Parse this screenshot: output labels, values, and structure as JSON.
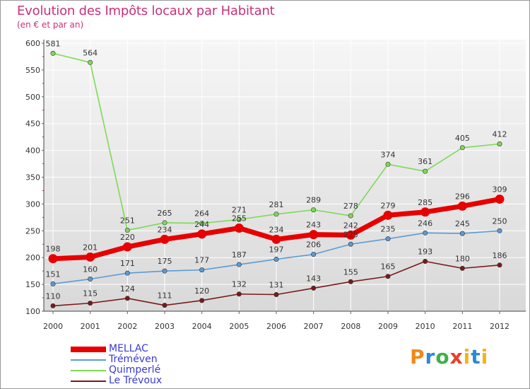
{
  "header": {
    "title": "Evolution des Impôts locaux par Habitant",
    "subtitle": "(en € et par an)"
  },
  "logo": {
    "text": "Proxiti"
  },
  "chart_data": {
    "type": "line",
    "title": "Evolution des Impôts locaux par Habitant",
    "subtitle": "(en € et par an)",
    "xlabel": "",
    "ylabel": "",
    "x": [
      "2000",
      "2001",
      "2002",
      "2003",
      "2004",
      "2005",
      "2006",
      "2007",
      "2008",
      "2009",
      "2010",
      "2011",
      "2012"
    ],
    "ylim": [
      100,
      600
    ],
    "yticks": [
      100,
      150,
      200,
      250,
      300,
      350,
      400,
      450,
      500,
      550,
      600
    ],
    "grid": true,
    "legend_position": "bottom-left",
    "series": [
      {
        "name": "MELLAC",
        "color": "#e60000",
        "emphasis": true,
        "values": [
          198,
          201,
          220,
          234,
          244,
          255,
          234,
          243,
          242,
          279,
          285,
          296,
          309
        ]
      },
      {
        "name": "Tréméven",
        "color": "#5b9bd5",
        "values": [
          151,
          160,
          171,
          175,
          177,
          187,
          197,
          206,
          225,
          235,
          246,
          245,
          250
        ]
      },
      {
        "name": "Quimperlé",
        "color": "#7ed957",
        "values": [
          581,
          564,
          251,
          265,
          264,
          271,
          281,
          289,
          278,
          374,
          361,
          405,
          412
        ]
      },
      {
        "name": "Le Trévoux",
        "color": "#7a1a1a",
        "values": [
          110,
          115,
          124,
          111,
          120,
          132,
          131,
          143,
          155,
          165,
          193,
          180,
          186
        ]
      }
    ]
  }
}
